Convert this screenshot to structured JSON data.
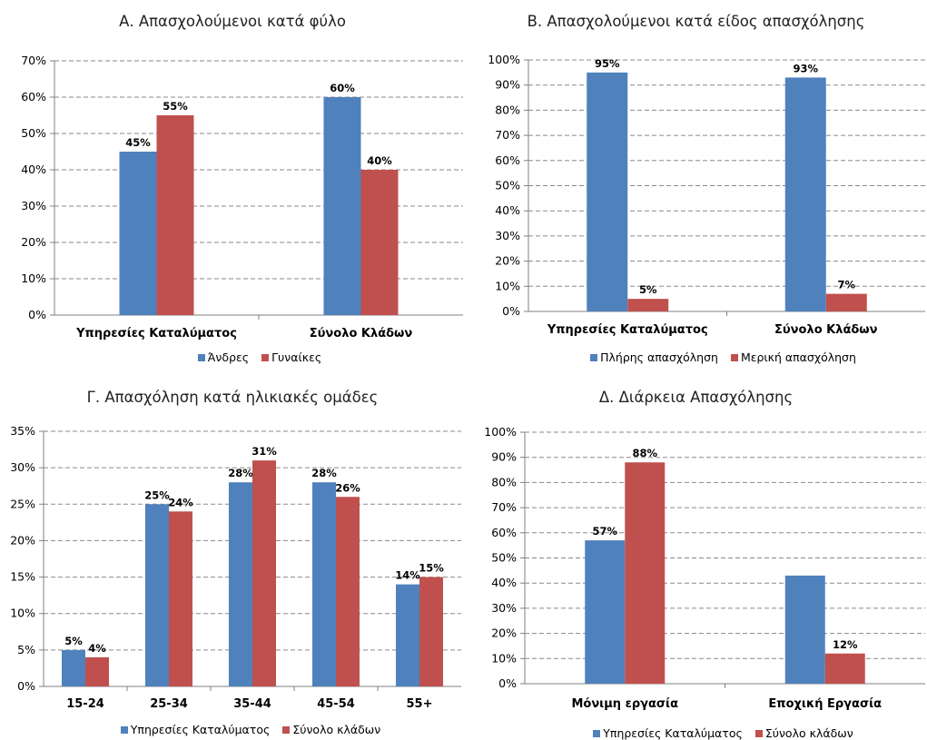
{
  "colors": {
    "series1": "#4F81BD",
    "series2": "#C0504D",
    "grid": "#8A8A8A"
  },
  "chart_data": [
    {
      "type": "bar",
      "title": "Α. Απασχολούμενοι κατά φύλο",
      "categories": [
        "Υπηρεσίες Καταλύματος",
        "Σύνολο Κλάδων"
      ],
      "series": [
        {
          "name": "Άνδρες",
          "values": [
            45,
            60
          ],
          "labels": [
            "45%",
            "60%"
          ]
        },
        {
          "name": "Γυναίκες",
          "values": [
            55,
            40
          ],
          "labels": [
            "55%",
            "40%"
          ]
        }
      ],
      "ylim": [
        0,
        70
      ],
      "yticks": [
        "0%",
        "10%",
        "20%",
        "30%",
        "40%",
        "50%",
        "60%",
        "70%"
      ],
      "xlabel": "",
      "ylabel": "",
      "grid": true,
      "legend": "bottom"
    },
    {
      "type": "bar",
      "title": "Β. Απασχολούμενοι κατά είδος απασχόλησης",
      "categories": [
        "Υπηρεσίες Καταλύματος",
        "Σύνολο Κλάδων"
      ],
      "series": [
        {
          "name": "Πλήρης απασχόληση",
          "values": [
            95,
            93
          ],
          "labels": [
            "95%",
            "93%"
          ]
        },
        {
          "name": "Μερική απασχόληση",
          "values": [
            5,
            7
          ],
          "labels": [
            "5%",
            "7%"
          ]
        }
      ],
      "ylim": [
        0,
        100
      ],
      "yticks": [
        "0%",
        "10%",
        "20%",
        "30%",
        "40%",
        "50%",
        "60%",
        "70%",
        "80%",
        "90%",
        "100%"
      ],
      "xlabel": "",
      "ylabel": "",
      "grid": true,
      "legend": "bottom"
    },
    {
      "type": "bar",
      "title": "Γ. Απασχόληση κατά ηλικιακές ομάδες",
      "categories": [
        "15-24",
        "25-34",
        "35-44",
        "45-54",
        "55+"
      ],
      "series": [
        {
          "name": "Υπηρεσίες Καταλύματος",
          "values": [
            5,
            25,
            28,
            28,
            14
          ],
          "labels": [
            "5%",
            "25%",
            "28%",
            "28%",
            "14%"
          ]
        },
        {
          "name": "Σύνολο κλάδων",
          "values": [
            4,
            24,
            31,
            26,
            15
          ],
          "labels": [
            "4%",
            "24%",
            "31%",
            "26%",
            "15%"
          ]
        }
      ],
      "ylim": [
        0,
        35
      ],
      "yticks": [
        "0%",
        "5%",
        "10%",
        "15%",
        "20%",
        "25%",
        "30%",
        "35%"
      ],
      "xlabel": "",
      "ylabel": "",
      "grid": true,
      "legend": "bottom"
    },
    {
      "type": "bar",
      "title": "Δ. Διάρκεια Απασχόλησης",
      "categories": [
        "Μόνιμη εργασία",
        "Εποχική Εργασία"
      ],
      "series": [
        {
          "name": "Υπηρεσίες Καταλύματος",
          "values": [
            57,
            43
          ],
          "labels": [
            "57%",
            ""
          ]
        },
        {
          "name": "Σύνολο κλάδων",
          "values": [
            88,
            12
          ],
          "labels": [
            "88%",
            "12%"
          ]
        }
      ],
      "ylim": [
        0,
        100
      ],
      "yticks": [
        "0%",
        "10%",
        "20%",
        "30%",
        "40%",
        "50%",
        "60%",
        "70%",
        "80%",
        "90%",
        "100%"
      ],
      "xlabel": "",
      "ylabel": "",
      "grid": true,
      "legend": "bottom"
    }
  ]
}
